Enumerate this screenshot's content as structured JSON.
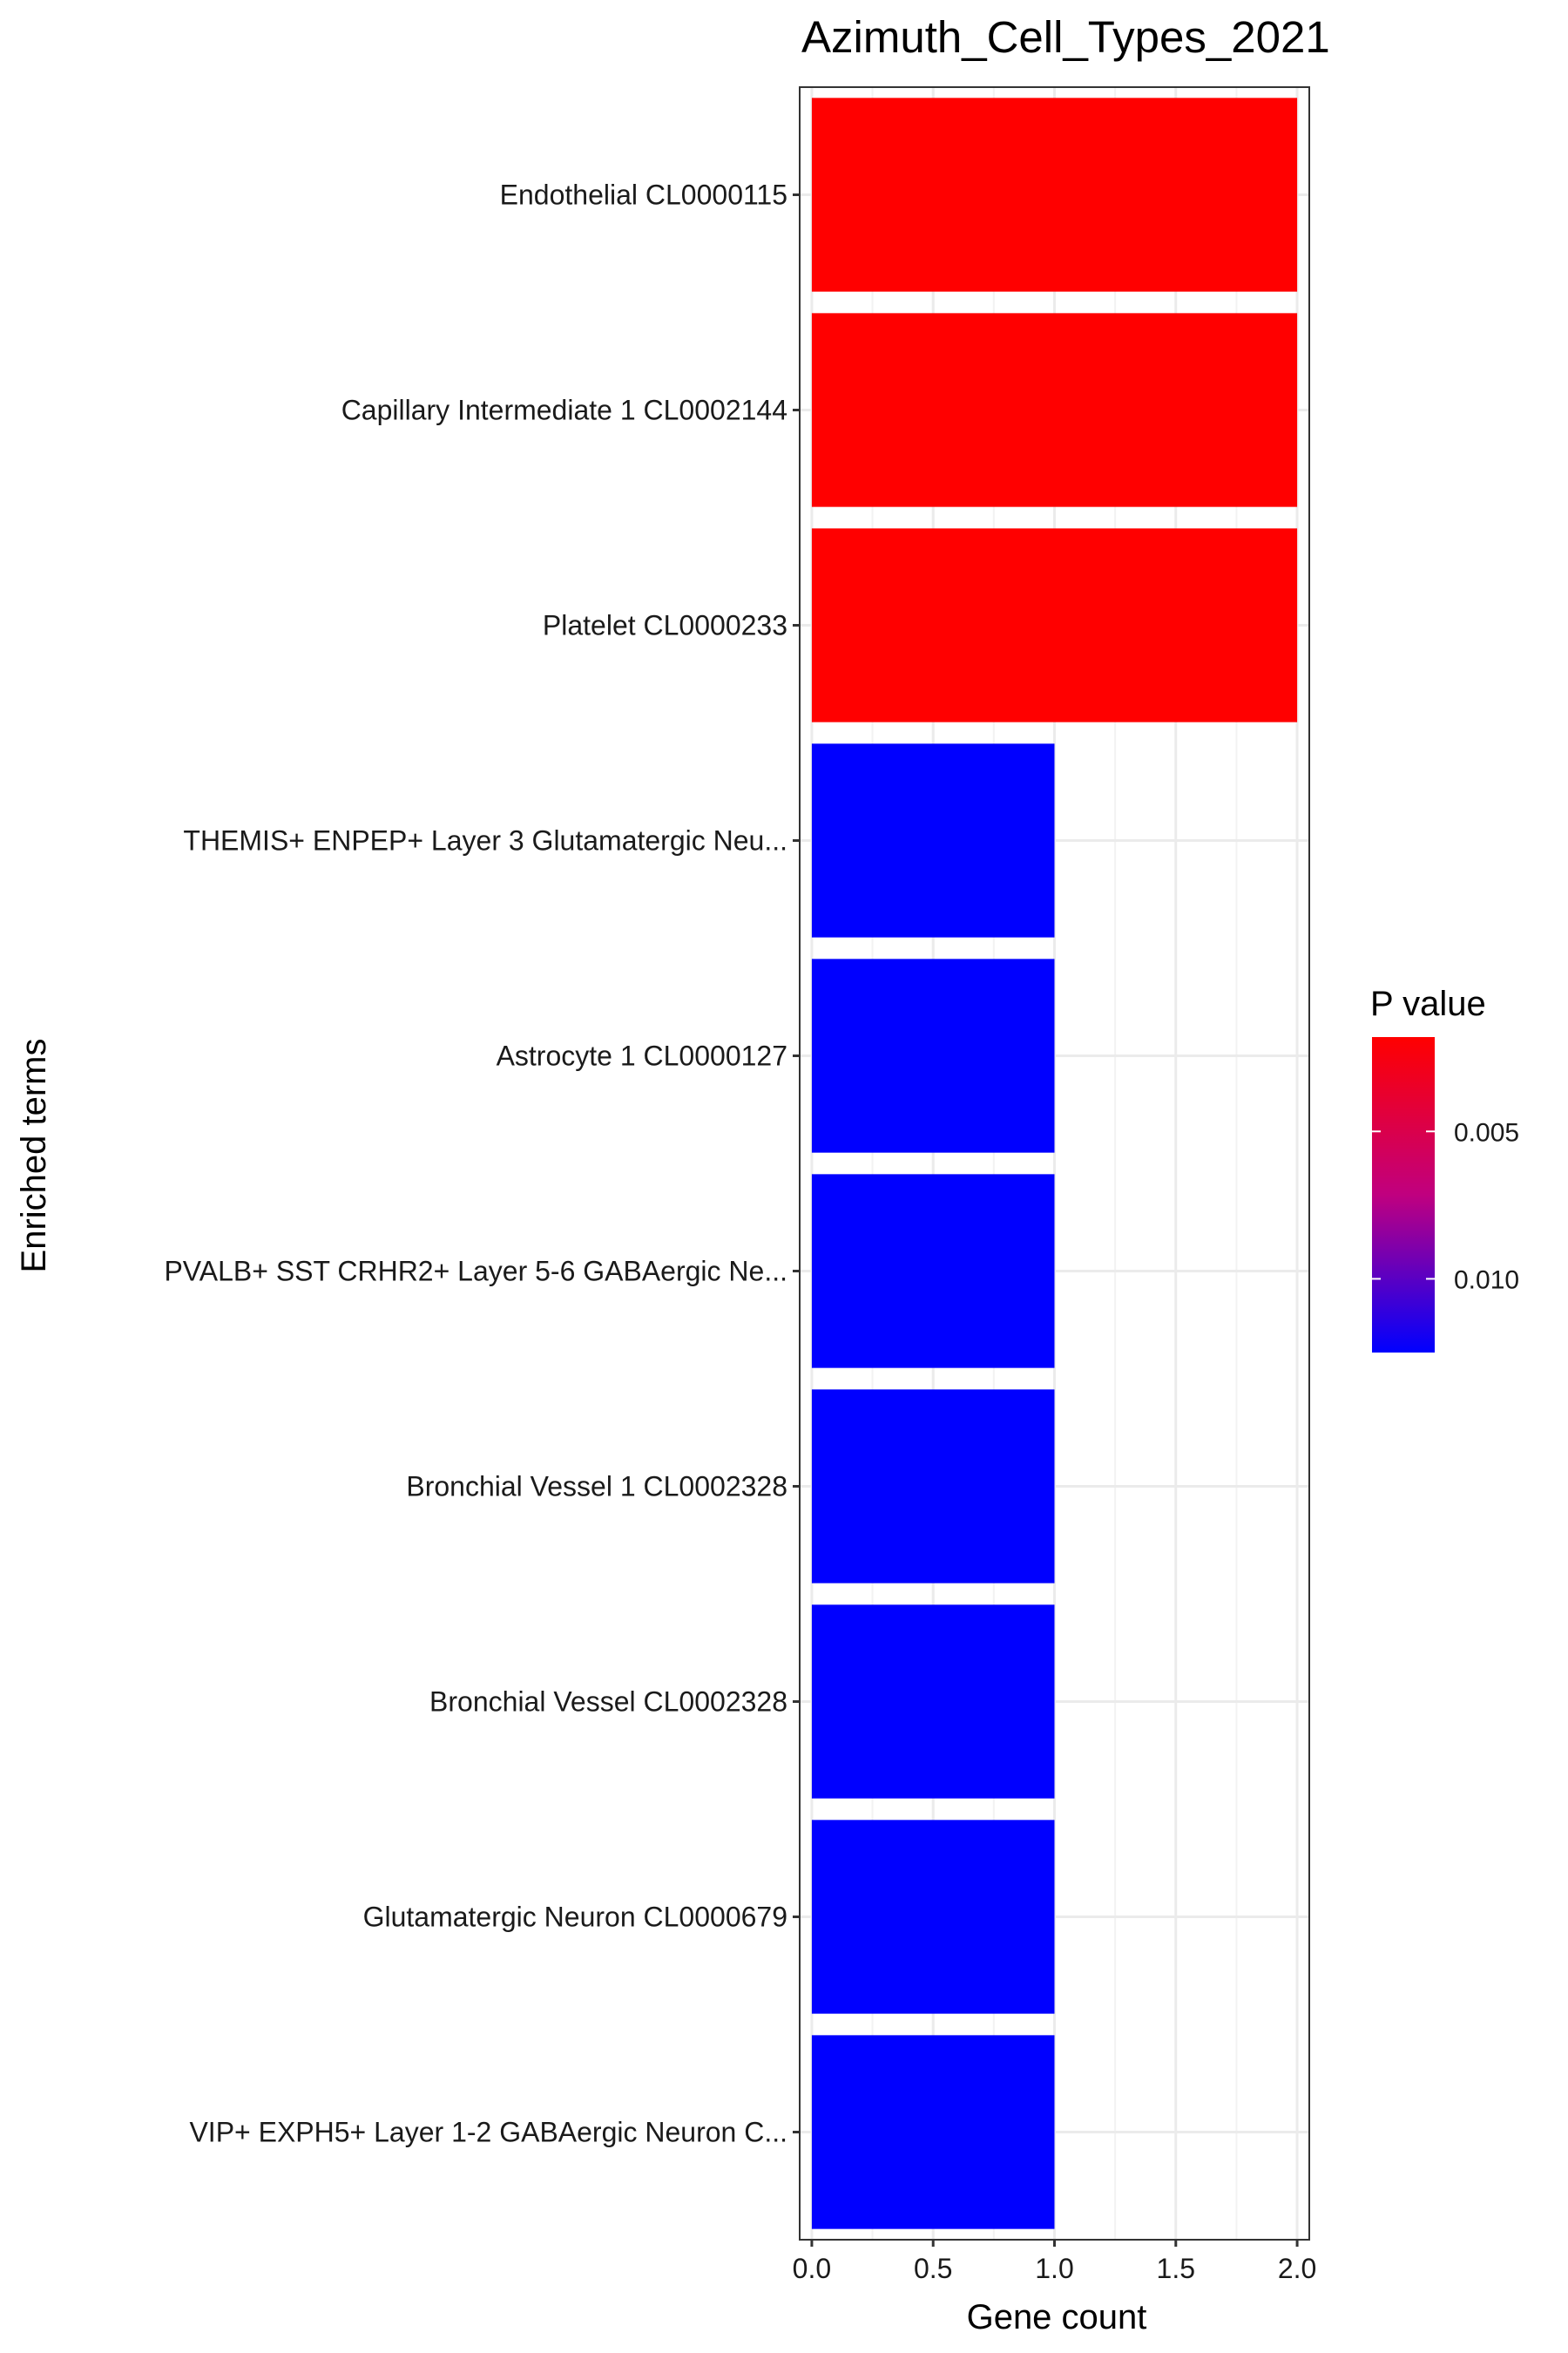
{
  "chart_data": {
    "type": "bar",
    "orientation": "horizontal",
    "title": "Azimuth_Cell_Types_2021",
    "xlabel": "Gene count",
    "ylabel": "Enriched terms",
    "xlim": [
      -0.05,
      2.05
    ],
    "xticks": [
      0.0,
      0.5,
      1.0,
      1.5,
      2.0
    ],
    "xtick_labels": [
      "0.0",
      "0.5",
      "1.0",
      "1.5",
      "2.0"
    ],
    "grid": true,
    "categories": [
      "Endothelial CL0000115",
      "Capillary Intermediate 1 CL0002144",
      "Platelet CL0000233",
      "THEMIS+ ENPEP+ Layer 3 Glutamatergic Neu...",
      "Astrocyte 1 CL0000127",
      "PVALB+ SST CRHR2+ Layer 5-6 GABAergic Ne...",
      "Bronchial Vessel 1 CL0002328",
      "Bronchial Vessel CL0002328",
      "Glutamatergic Neuron CL0000679",
      "VIP+ EXPH5+ Layer 1-2 GABAergic Neuron C..."
    ],
    "values": [
      2,
      2,
      2,
      1,
      1,
      1,
      1,
      1,
      1,
      1
    ],
    "p_values": [
      0.0018,
      0.0018,
      0.0018,
      0.0125,
      0.0125,
      0.0125,
      0.0125,
      0.0125,
      0.0125,
      0.0125
    ],
    "legend": {
      "title": "P value",
      "placement": "right",
      "range": [
        0.0018,
        0.0125
      ],
      "breaks": [
        0.005,
        0.01
      ],
      "break_labels": [
        "0.005",
        "0.010"
      ],
      "colors": {
        "low": "#ff0000",
        "mid": "#c0007f",
        "high": "#0000ff"
      }
    }
  }
}
